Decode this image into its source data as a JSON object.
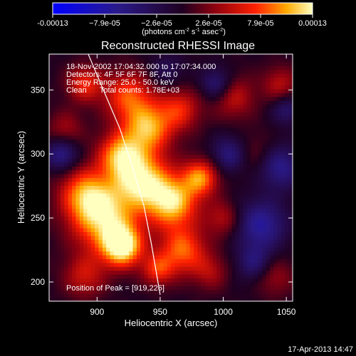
{
  "chart_data": {
    "type": "heatmap",
    "title": "Reconstructed RHESSI Image",
    "xlabel": "Heliocentric X (arcsec)",
    "ylabel": "Heliocentric Y (arcsec)",
    "xlim": [
      862,
      1055
    ],
    "ylim": [
      185,
      378
    ],
    "xticks": [
      900,
      950,
      1000,
      1050
    ],
    "yticks": [
      200,
      250,
      300,
      350
    ],
    "colorbar": {
      "ticks": [
        "-0.00013",
        "−7.9e-05",
        "−2.6e-05",
        "2.6e-05",
        "7.9e-05",
        "0.00013"
      ],
      "min": -0.00013,
      "max": 0.00013,
      "label_parts": [
        "(photons cm",
        "-2",
        " s",
        "-1",
        " asec",
        "-2",
        ")"
      ]
    },
    "annotations": [
      "18-Nov-2002 17:04:32.000 to 17:07:34.000",
      "Detectors: 4F 5F 6F 7F 8F, Att 0",
      "Energy Range: 25.0 - 50.0 keV",
      "Clean      Total counts: 1.78E+03"
    ],
    "peak_label": "Position of Peak = [919,226]",
    "peak": [
      919,
      226
    ],
    "limb_curve": [
      [
        893,
        378
      ],
      [
        905,
        350
      ],
      [
        918,
        320
      ],
      [
        928,
        290
      ],
      [
        937,
        260
      ],
      [
        943,
        230
      ],
      [
        950,
        190
      ]
    ],
    "blobs": [
      [
        920,
        228,
        11,
        1.0
      ],
      [
        905,
        250,
        18,
        0.85
      ],
      [
        890,
        270,
        14,
        0.6
      ],
      [
        935,
        280,
        16,
        0.9
      ],
      [
        960,
        262,
        14,
        0.85
      ],
      [
        982,
        282,
        10,
        0.7
      ],
      [
        918,
        300,
        12,
        0.7
      ],
      [
        940,
        320,
        13,
        0.75
      ],
      [
        925,
        345,
        14,
        0.6
      ],
      [
        890,
        355,
        10,
        0.5
      ],
      [
        965,
        335,
        12,
        0.5
      ],
      [
        968,
        225,
        13,
        0.65
      ],
      [
        948,
        210,
        9,
        0.5
      ],
      [
        890,
        205,
        12,
        0.4
      ],
      [
        1000,
        250,
        10,
        0.35
      ],
      [
        1008,
        345,
        12,
        0.4
      ],
      [
        1045,
        355,
        10,
        0.35
      ],
      [
        1040,
        205,
        11,
        0.3
      ],
      [
        1025,
        300,
        12,
        0.2
      ],
      [
        875,
        320,
        10,
        0.3
      ],
      [
        990,
        208,
        10,
        0.3
      ],
      [
        1030,
        245,
        14,
        -0.55
      ],
      [
        1045,
        290,
        12,
        -0.5
      ],
      [
        1005,
        300,
        10,
        -0.45
      ],
      [
        995,
        355,
        9,
        -0.45
      ],
      [
        1025,
        215,
        10,
        -0.4
      ],
      [
        872,
        300,
        9,
        -0.5
      ],
      [
        955,
        365,
        10,
        -0.25
      ],
      [
        1050,
        335,
        8,
        -0.35
      ]
    ],
    "footer": "17-Apr-2013 14:47"
  }
}
